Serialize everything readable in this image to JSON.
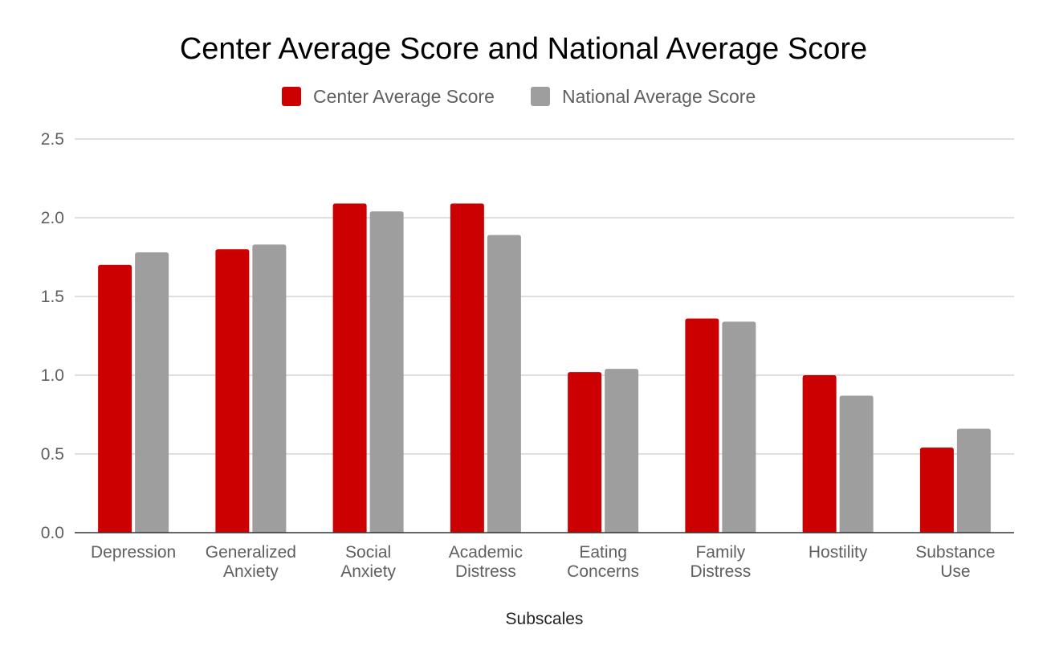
{
  "chart_data": {
    "type": "bar",
    "title": "Center Average Score and National Average Score",
    "xlabel": "Subscales",
    "ylabel": "",
    "ylim": [
      0,
      2.5
    ],
    "yticks": [
      "0.0",
      "0.5",
      "1.0",
      "1.5",
      "2.0",
      "2.5"
    ],
    "ytick_values": [
      0,
      0.5,
      1.0,
      1.5,
      2.0,
      2.5
    ],
    "grid": true,
    "legend_position": "top-center",
    "categories": [
      [
        "Depression"
      ],
      [
        "Generalized",
        "Anxiety"
      ],
      [
        "Social",
        "Anxiety"
      ],
      [
        "Academic",
        "Distress"
      ],
      [
        "Eating",
        "Concerns"
      ],
      [
        "Family",
        "Distress"
      ],
      [
        "Hostility"
      ],
      [
        "Substance",
        "Use"
      ]
    ],
    "series": [
      {
        "name": "Center Average Score",
        "color": "#cc0000",
        "values": [
          1.7,
          1.8,
          2.09,
          2.09,
          1.02,
          1.36,
          1.0,
          0.54
        ]
      },
      {
        "name": "National Average Score",
        "color": "#9e9e9e",
        "values": [
          1.78,
          1.83,
          2.04,
          1.89,
          1.04,
          1.34,
          0.87,
          0.66
        ]
      }
    ]
  }
}
